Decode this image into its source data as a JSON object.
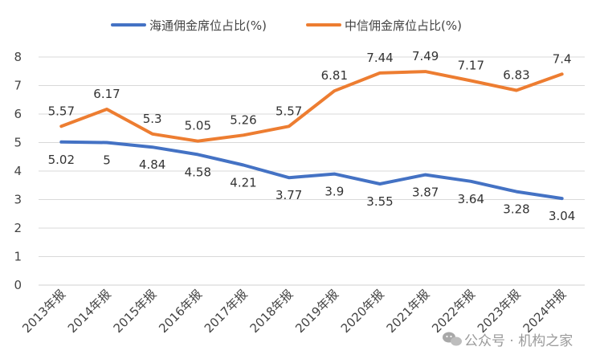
{
  "chart_data": {
    "type": "line",
    "title": "",
    "xlabel": "",
    "ylabel": "",
    "ylim": [
      0,
      8
    ],
    "yticks": [
      0,
      1,
      2,
      3,
      4,
      5,
      6,
      7,
      8
    ],
    "grid": true,
    "legend_position": "top",
    "categories": [
      "2013年报",
      "2014年报",
      "2015年报",
      "2016年报",
      "2017年报",
      "2018年报",
      "2019年报",
      "2020年报",
      "2021年报",
      "2022年报",
      "2023年报",
      "2024中报"
    ],
    "series": [
      {
        "name": "海通佣金席位占比(%)",
        "color": "#4472C4",
        "label_position": "below",
        "values": [
          5.02,
          5,
          4.84,
          4.58,
          4.21,
          3.77,
          3.9,
          3.55,
          3.87,
          3.64,
          3.28,
          3.04
        ]
      },
      {
        "name": "中信佣金席位占比(%)",
        "color": "#ED7D31",
        "label_position": "above",
        "values": [
          5.57,
          6.17,
          5.3,
          5.05,
          5.26,
          5.57,
          6.81,
          7.44,
          7.49,
          7.17,
          6.83,
          7.4
        ]
      }
    ]
  },
  "watermark": {
    "text": "公众号 · 机构之家",
    "icon": "wechat-icon"
  }
}
